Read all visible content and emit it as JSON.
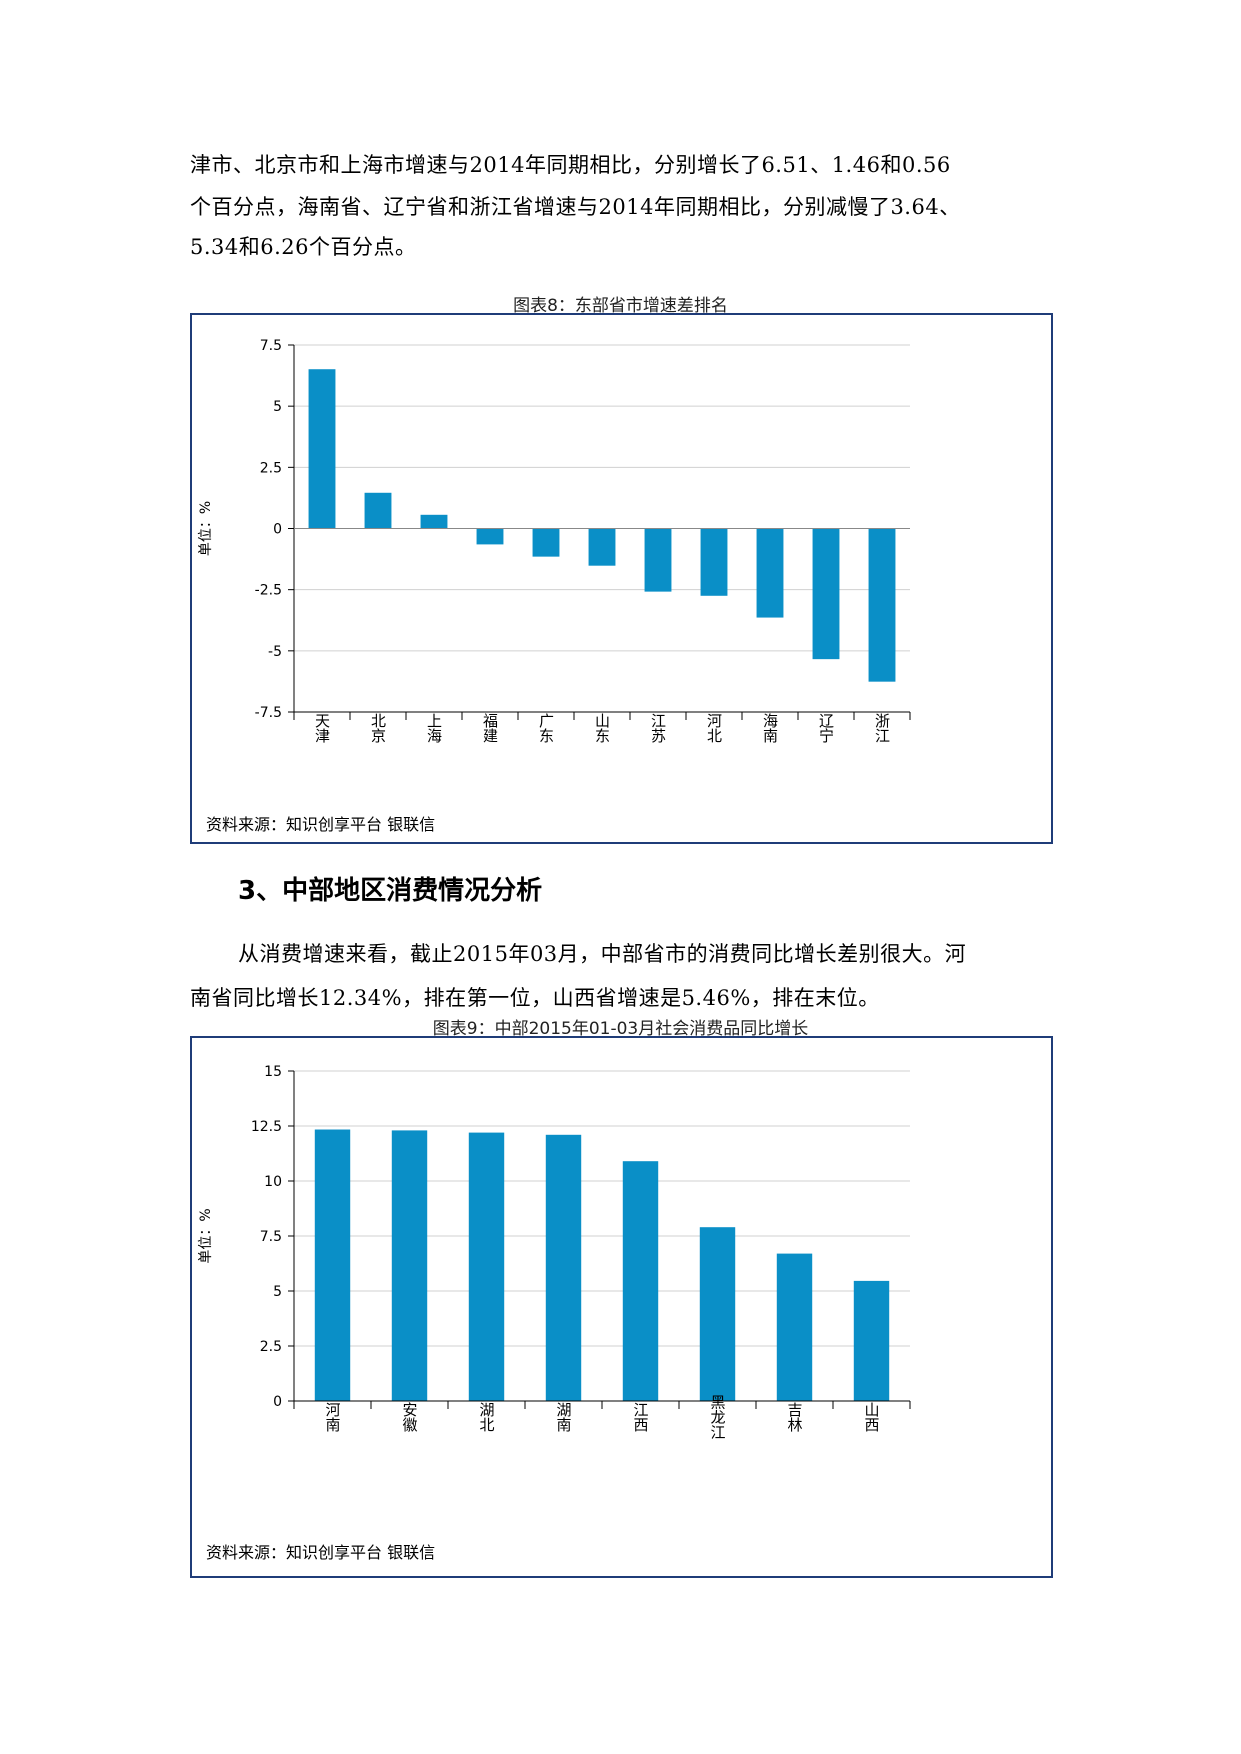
{
  "intro": {
    "line1": "津市、北京市和上海市增速与2014年同期相比，分别增长了6.51、1.46和0.56",
    "line2": "个百分点，海南省、辽宁省和浙江省增速与2014年同期相比，分别减慢了3.64、",
    "line3": "5.34和6.26个百分点。"
  },
  "section": {
    "heading": "3、中部地区消费情况分析",
    "para_line1": "从消费增速来看，截止2015年03月，中部省市的消费同比增长差别很大。河",
    "para_line2": "南省同比增长12.34%，排在第一位，山西省增速是5.46%，排在末位。"
  },
  "colors": {
    "bar": "#0a8fc7",
    "frame": "#1f3c78",
    "grid": "#d0d0d0"
  },
  "chart_data": [
    {
      "type": "bar",
      "title": "图表8：东部省市增速差排名",
      "ylabel": "单位：%",
      "source": "资料来源：知识创享平台 银联信",
      "categories": [
        "天津",
        "北京",
        "上海",
        "福建",
        "广东",
        "山东",
        "江苏",
        "河北",
        "海南",
        "辽宁",
        "浙江"
      ],
      "values": [
        6.51,
        1.46,
        0.56,
        -0.65,
        -1.15,
        -1.52,
        -2.58,
        -2.75,
        -3.64,
        -5.34,
        -6.26
      ],
      "ylim": [
        -7.5,
        7.5
      ],
      "yticks": [
        "7.5",
        "5",
        "2.5",
        "0",
        "-2.5",
        "-5",
        "-7.5"
      ],
      "grid": true
    },
    {
      "type": "bar",
      "title": "图表9：中部2015年01-03月社会消费品同比增长",
      "ylabel": "单位：%",
      "source": "资料来源：知识创享平台 银联信",
      "categories": [
        "河南",
        "安徽",
        "湖北",
        "湖南",
        "江西",
        "黑龙江",
        "吉林",
        "山西"
      ],
      "values": [
        12.34,
        12.3,
        12.2,
        12.1,
        10.9,
        7.9,
        6.7,
        5.46
      ],
      "ylim": [
        0,
        15
      ],
      "yticks": [
        "15",
        "12.5",
        "10",
        "7.5",
        "5",
        "2.5",
        "0"
      ],
      "grid": true
    }
  ]
}
